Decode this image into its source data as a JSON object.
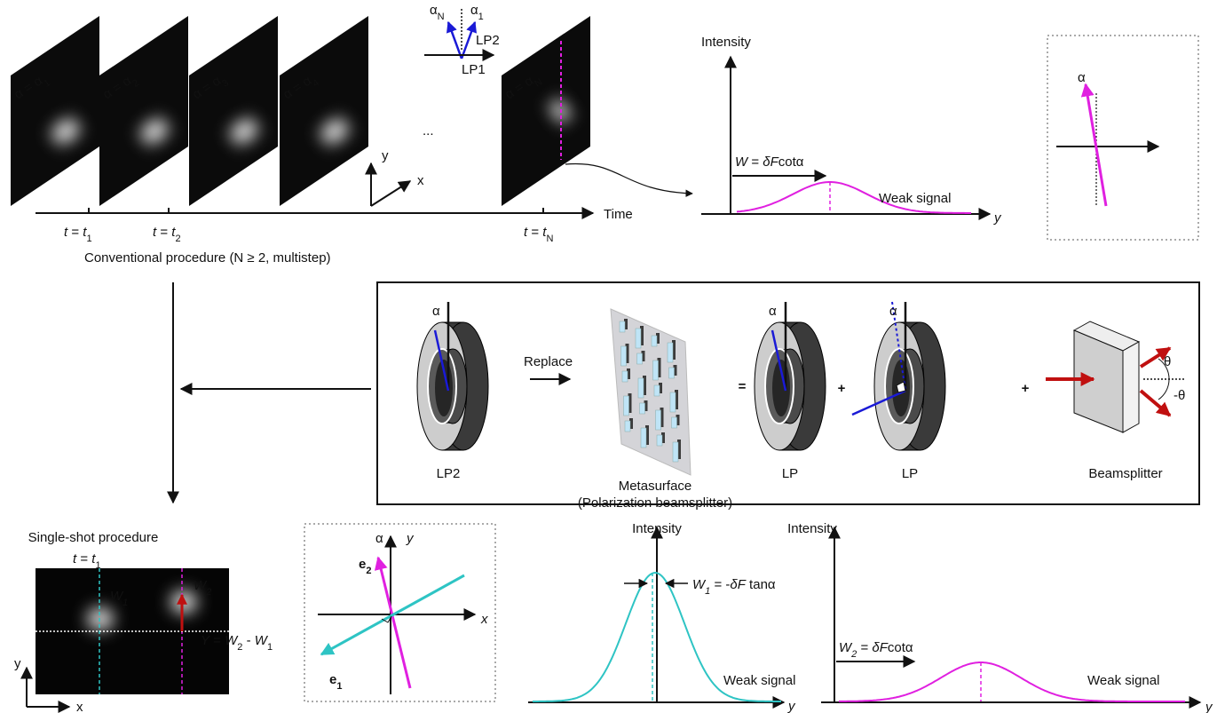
{
  "conventional": {
    "frame_labels": [
      [
        "α = α",
        "1"
      ],
      [
        "α = α",
        "2"
      ],
      [
        "α = α",
        "3"
      ],
      [
        "α = α",
        "4"
      ],
      [
        "α = α",
        "N"
      ]
    ],
    "polarizer": {
      "alpha_n": [
        "α",
        "N"
      ],
      "alpha_1": [
        "α",
        "1"
      ],
      "lp2": "LP2",
      "lp1": "LP1"
    },
    "ellipsis": "...",
    "axes": {
      "y": "y",
      "x": "x"
    },
    "time_label": "Time",
    "time_ticks": [
      [
        "t",
        " = ",
        "t",
        "1"
      ],
      [
        "t",
        " = ",
        "t",
        "2"
      ],
      [
        "t",
        " = ",
        "t",
        "N"
      ]
    ],
    "caption": "Conventional procedure (N ≥ 2, multistep)"
  },
  "conventional_plot": {
    "y_label": "Intensity",
    "width_label": [
      "W",
      " = ",
      "δF",
      "cotα"
    ],
    "signal": "Weak signal",
    "x_label": "y"
  },
  "conventional_inset": {
    "angle": "α"
  },
  "replacement": {
    "lp2": {
      "angle": "α",
      "label": "LP2"
    },
    "replace": "Replace",
    "metasurface": [
      "Metasurface",
      "(Polarization beamsplitter)"
    ],
    "equals": "=",
    "lp_a": {
      "angle": "α",
      "label": "LP"
    },
    "plus_1": "+",
    "lp_b": {
      "angle": "α",
      "label": "LP"
    },
    "plus_2": "+",
    "beamsplitter": {
      "theta_up": "θ",
      "theta_down": "-θ",
      "label": "Beamsplitter"
    }
  },
  "single_shot": {
    "title": "Single-shot procedure",
    "time": [
      "t",
      " = ",
      "t",
      "1"
    ],
    "w1": [
      "W",
      "1"
    ],
    "w2": [
      "W",
      "2"
    ],
    "difference": [
      "Y",
      " = ",
      "W",
      "2",
      " - ",
      "W",
      "1"
    ],
    "axes": {
      "y": "y",
      "x": "x"
    }
  },
  "basis_inset": {
    "angle": "α",
    "y": "y",
    "e2": [
      "e",
      "2"
    ],
    "x": "x",
    "e1": [
      "e",
      "1"
    ]
  },
  "plot_e1": {
    "y_label": "Intensity",
    "width_label": [
      "W",
      "1",
      " = -",
      "δF",
      " tanα"
    ],
    "signal": "Weak signal",
    "x_label": "y"
  },
  "plot_e2": {
    "y_label": "Intensity",
    "width_label": [
      "W",
      "2",
      " = ",
      "δF",
      "cotα"
    ],
    "signal": "Weak signal",
    "x_label": "y"
  }
}
